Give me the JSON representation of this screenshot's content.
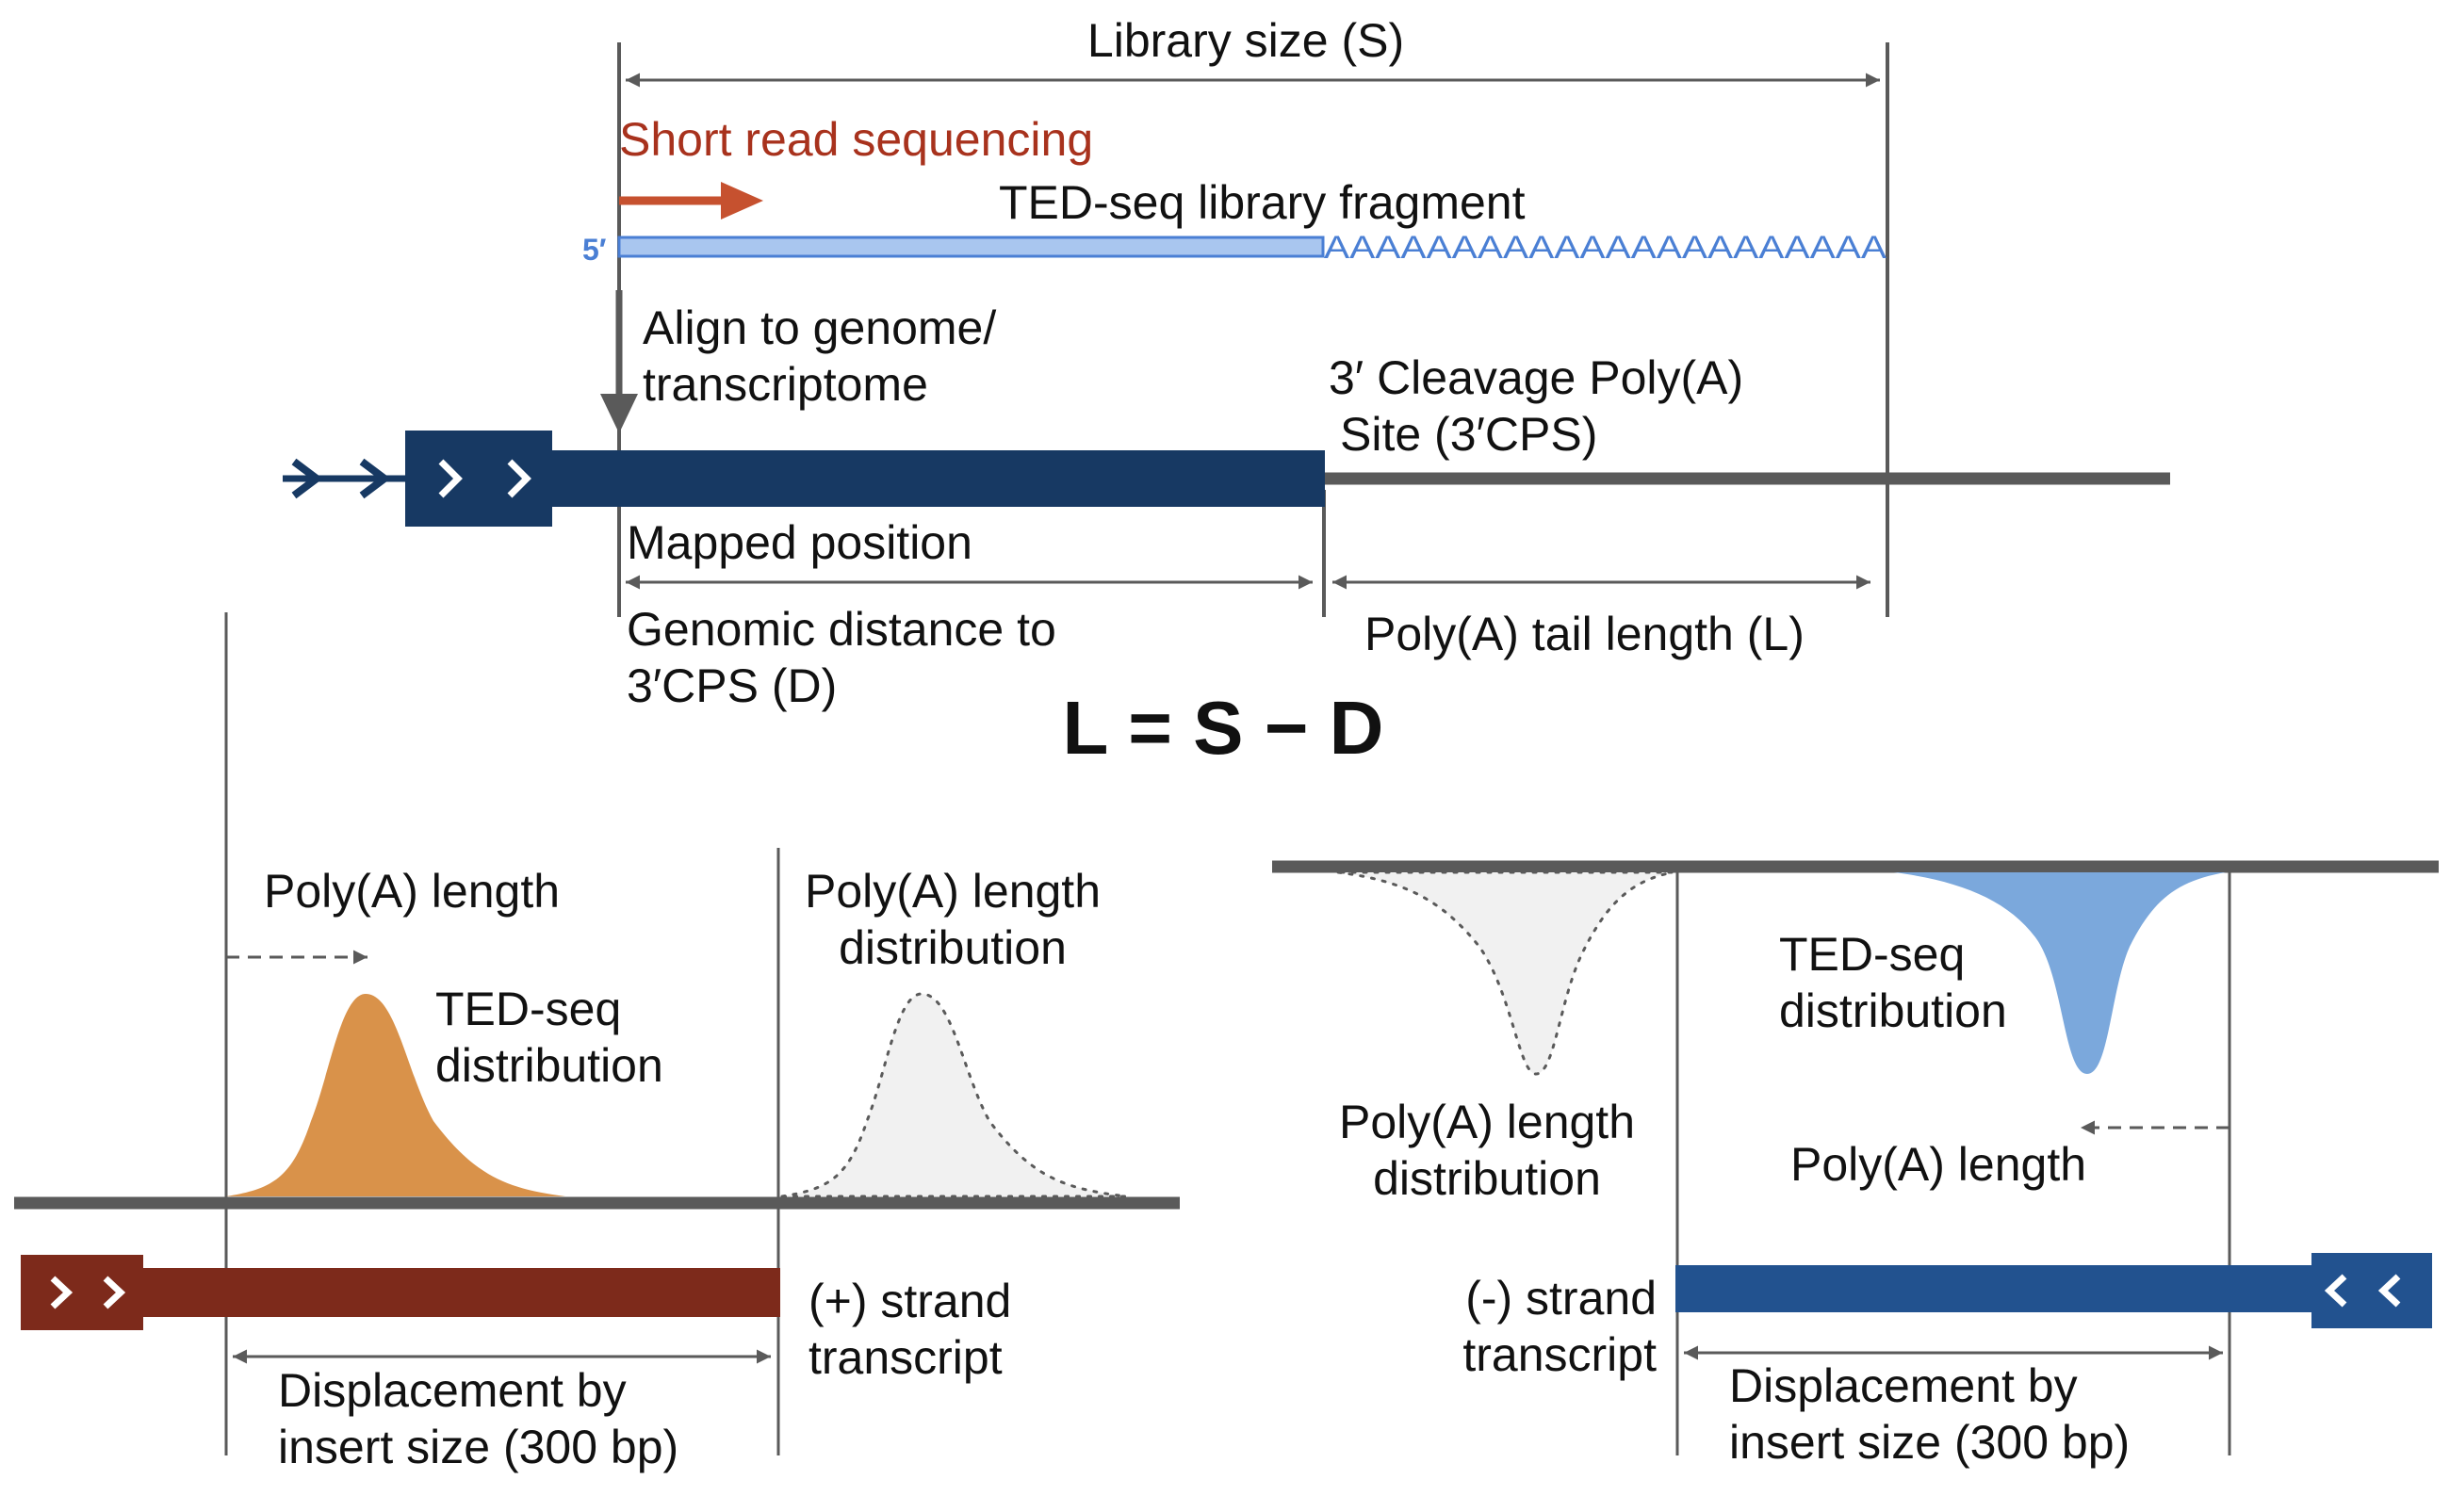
{
  "colors": {
    "gene_dark_blue": "#173963",
    "fragment_fill": "#a9c6ef",
    "fragment_stroke": "#4a7fd4",
    "polya_letters": "#4a7fd4",
    "read_arrow": "#c6512f",
    "short_read_text": "#a8321d",
    "genome_line": "#5a5a5a",
    "plus_transcript": "#7d2a1b",
    "minus_transcript": "#22528f",
    "tedseq_orange": "#d9924a",
    "tedseq_blue": "#7ba8dc",
    "polya_dist_fill": "#f1f1f1"
  },
  "top": {
    "library_size": "Library size (S)",
    "short_read": "Short read sequencing",
    "fragment_label": "TED-seq library fragment",
    "five_prime": "5′",
    "polya_tail": "AAAAAAAAAAAAAAAAAAAAAA",
    "align_line1": "Align to genome/",
    "align_line2": "transcriptome",
    "cps_line1": "3′ Cleavage Poly(A)",
    "cps_line2": "Site (3′CPS)",
    "mapped_position": "Mapped position",
    "distance_line1": "Genomic distance to",
    "distance_line2": "3′CPS (D)",
    "tail_length": "Poly(A) tail length (L)",
    "formula": "L = S − D"
  },
  "left_panel": {
    "polya_length": "Poly(A) length",
    "tedseq_line1": "TED-seq",
    "tedseq_line2": "distribution",
    "dist_line1": "Poly(A) length",
    "dist_line2": "distribution",
    "strand_line1": "(+) strand",
    "strand_line2": "transcript",
    "displacement_line1": "Displacement by",
    "displacement_line2": "insert size (300 bp)"
  },
  "right_panel": {
    "tedseq_line1": "TED-seq",
    "tedseq_line2": "distribution",
    "dist_line1": "Poly(A) length",
    "dist_line2": "distribution",
    "polya_length": "Poly(A) length",
    "strand_line1": "(-) strand",
    "strand_line2": "transcript",
    "displacement_line1": "Displacement by",
    "displacement_line2": "insert size (300 bp)"
  }
}
